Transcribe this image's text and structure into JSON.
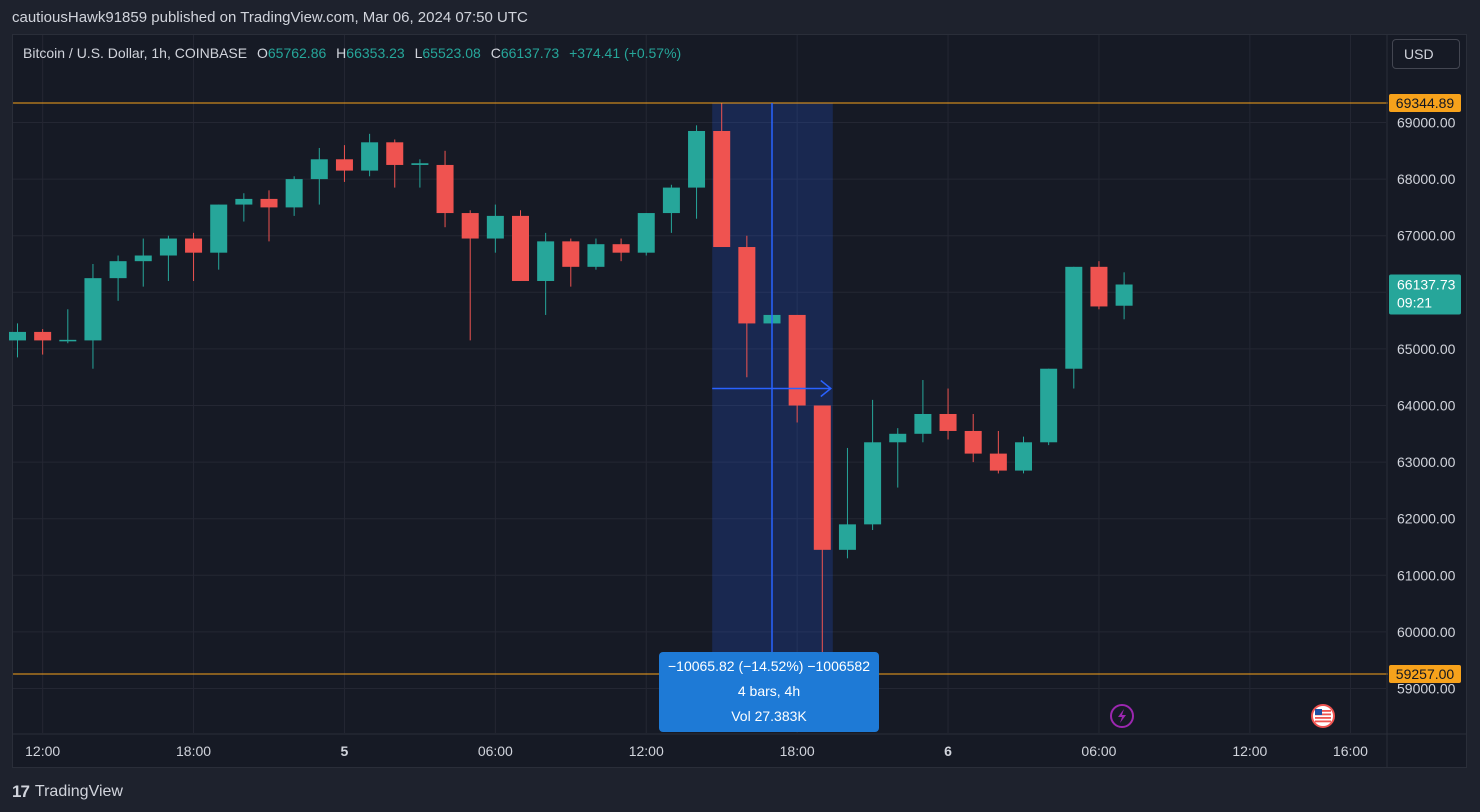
{
  "header": {
    "publish_line": "cautiousHawk91859 published on TradingView.com, Mar 06, 2024 07:50 UTC"
  },
  "legend": {
    "symbol": "Bitcoin / U.S. Dollar, 1h, COINBASE",
    "o_label": "O",
    "o_value": "65762.86",
    "h_label": "H",
    "h_value": "66353.23",
    "l_label": "L",
    "l_value": "65523.08",
    "c_label": "C",
    "c_value": "66137.73",
    "change": "+374.41 (+0.57%)"
  },
  "currency_button": "USD",
  "colors": {
    "up": "#26a69a",
    "down": "#ef5350",
    "level": "#f7a21b",
    "measure": "#2962ff",
    "bg": "#161a25",
    "grid": "#242733"
  },
  "chart_data": {
    "type": "candlestick",
    "title": "Bitcoin / U.S. Dollar, 1h, COINBASE",
    "ylim": [
      58300,
      69800
    ],
    "y_ticks": [
      59000,
      60000,
      61000,
      62000,
      63000,
      64000,
      65000,
      66000,
      67000,
      68000,
      69000
    ],
    "y_tick_labels": [
      "59000.00",
      "60000.00",
      "61000.00",
      "62000.00",
      "63000.00",
      "64000.00",
      "65000.00",
      "66000.00",
      "67000.00",
      "68000.00",
      "69000.00"
    ],
    "x_labels": [
      {
        "bar": 1,
        "text": "12:00",
        "bold": false
      },
      {
        "bar": 7,
        "text": "18:00",
        "bold": false
      },
      {
        "bar": 13,
        "text": "5",
        "bold": true
      },
      {
        "bar": 19,
        "text": "06:00",
        "bold": false
      },
      {
        "bar": 25,
        "text": "12:00",
        "bold": false
      },
      {
        "bar": 31,
        "text": "18:00",
        "bold": false
      },
      {
        "bar": 37,
        "text": "6",
        "bold": true
      },
      {
        "bar": 43,
        "text": "06:00",
        "bold": false
      },
      {
        "bar": 49,
        "text": "12:00",
        "bold": false
      },
      {
        "bar": 53,
        "text": "16:00",
        "bold": false
      }
    ],
    "candles": [
      {
        "o": 65150,
        "h": 65450,
        "l": 64850,
        "c": 65300
      },
      {
        "o": 65300,
        "h": 65350,
        "l": 64900,
        "c": 65150
      },
      {
        "o": 65150,
        "h": 65700,
        "l": 65100,
        "c": 65160
      },
      {
        "o": 65150,
        "h": 66500,
        "l": 64650,
        "c": 66250
      },
      {
        "o": 66250,
        "h": 66650,
        "l": 65850,
        "c": 66550
      },
      {
        "o": 66550,
        "h": 66950,
        "l": 66100,
        "c": 66650
      },
      {
        "o": 66650,
        "h": 67000,
        "l": 66200,
        "c": 66950
      },
      {
        "o": 66950,
        "h": 67050,
        "l": 66200,
        "c": 66700
      },
      {
        "o": 66700,
        "h": 67550,
        "l": 66400,
        "c": 67550
      },
      {
        "o": 67550,
        "h": 67750,
        "l": 67250,
        "c": 67650
      },
      {
        "o": 67650,
        "h": 67800,
        "l": 66900,
        "c": 67500
      },
      {
        "o": 67500,
        "h": 68050,
        "l": 67350,
        "c": 68000
      },
      {
        "o": 68000,
        "h": 68550,
        "l": 67550,
        "c": 68350
      },
      {
        "o": 68350,
        "h": 68600,
        "l": 67950,
        "c": 68150
      },
      {
        "o": 68150,
        "h": 68800,
        "l": 68050,
        "c": 68650
      },
      {
        "o": 68650,
        "h": 68700,
        "l": 67850,
        "c": 68250
      },
      {
        "o": 68250,
        "h": 68350,
        "l": 67850,
        "c": 68280
      },
      {
        "o": 68250,
        "h": 68500,
        "l": 67150,
        "c": 67400
      },
      {
        "o": 67400,
        "h": 67450,
        "l": 65150,
        "c": 66950
      },
      {
        "o": 66950,
        "h": 67550,
        "l": 66700,
        "c": 67350
      },
      {
        "o": 67350,
        "h": 67450,
        "l": 66200,
        "c": 66200
      },
      {
        "o": 66200,
        "h": 67050,
        "l": 65600,
        "c": 66900
      },
      {
        "o": 66900,
        "h": 66950,
        "l": 66100,
        "c": 66450
      },
      {
        "o": 66450,
        "h": 66950,
        "l": 66400,
        "c": 66850
      },
      {
        "o": 66850,
        "h": 66950,
        "l": 66550,
        "c": 66700
      },
      {
        "o": 66700,
        "h": 67400,
        "l": 66650,
        "c": 67400
      },
      {
        "o": 67400,
        "h": 67900,
        "l": 67050,
        "c": 67850
      },
      {
        "o": 67850,
        "h": 68950,
        "l": 67300,
        "c": 68850
      },
      {
        "o": 68850,
        "h": 69344,
        "l": 66800,
        "c": 66800
      },
      {
        "o": 66800,
        "h": 67000,
        "l": 64500,
        "c": 65450
      },
      {
        "o": 65450,
        "h": 65650,
        "l": 65250,
        "c": 65600
      },
      {
        "o": 65600,
        "h": 65600,
        "l": 63700,
        "c": 64000
      },
      {
        "o": 64000,
        "h": 64000,
        "l": 59257,
        "c": 61450
      },
      {
        "o": 61450,
        "h": 63250,
        "l": 61300,
        "c": 61900
      },
      {
        "o": 61900,
        "h": 64100,
        "l": 61800,
        "c": 63350
      },
      {
        "o": 63350,
        "h": 63600,
        "l": 62550,
        "c": 63500
      },
      {
        "o": 63500,
        "h": 64450,
        "l": 63350,
        "c": 63850
      },
      {
        "o": 63850,
        "h": 64300,
        "l": 63400,
        "c": 63550
      },
      {
        "o": 63550,
        "h": 63850,
        "l": 63000,
        "c": 63150
      },
      {
        "o": 63150,
        "h": 63550,
        "l": 62800,
        "c": 62850
      },
      {
        "o": 62850,
        "h": 63450,
        "l": 62800,
        "c": 63350
      },
      {
        "o": 63350,
        "h": 64650,
        "l": 63300,
        "c": 64650
      },
      {
        "o": 64650,
        "h": 66450,
        "l": 64300,
        "c": 66450
      },
      {
        "o": 66450,
        "h": 66550,
        "l": 65700,
        "c": 65750
      },
      {
        "o": 65762.86,
        "h": 66353.23,
        "l": 65523.08,
        "c": 66137.73
      }
    ],
    "levels": [
      {
        "price": 69344.89,
        "label": "69344.89"
      },
      {
        "price": 59257.0,
        "label": "59257.00"
      }
    ],
    "last_price": {
      "price": 66137.73,
      "label": "66137.73",
      "countdown": "09:21"
    },
    "measure": {
      "from_bar": 28,
      "to_bar": 32,
      "vline_bar": 30,
      "arrow_price": 64300,
      "line1": "−10065.82 (−14.52%) −1006582",
      "line2": "4 bars, 4h",
      "line3": "Vol 27.383K"
    }
  },
  "footer": {
    "logo_mark": "17",
    "logo_text": "TradingView"
  }
}
